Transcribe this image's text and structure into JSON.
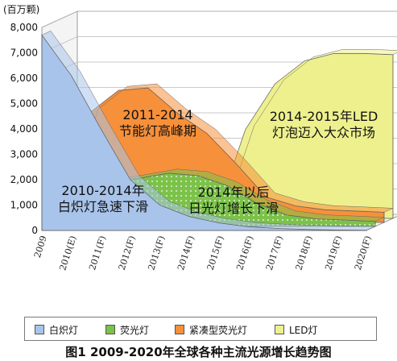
{
  "caption": "图1 2009-2020年全球各种主流光源增长趋势图",
  "colors": {
    "incandescent": "#a9c4ea",
    "fluorescent": "#7cc24a",
    "cfl": "#f7903a",
    "led": "#eef08e"
  },
  "chart_data": {
    "type": "area",
    "unit_label": "(百万颗)",
    "categories": [
      "2009",
      "2010(E)",
      "2011(F)",
      "2012(F)",
      "2013(F)",
      "2014(F)",
      "2015(F)",
      "2016(F)",
      "2017(F)",
      "2018(F)",
      "2019(F)",
      "2020(F)"
    ],
    "y_ticks": [
      "0",
      "1,000",
      "2,000",
      "3,000",
      "4,000",
      "5,000",
      "6,000",
      "7,000",
      "8,000"
    ],
    "ylim": [
      0,
      8000
    ],
    "series": [
      {
        "key": "led",
        "name": "LED灯",
        "values": [
          0,
          0,
          0,
          0,
          0,
          100,
          3500,
          5300,
          6200,
          6500,
          6500,
          6450
        ]
      },
      {
        "key": "cfl",
        "name": "紧凑型荧光灯",
        "values": [
          0,
          4300,
          5200,
          5300,
          4300,
          3500,
          2300,
          1000,
          650,
          500,
          450,
          400
        ]
      },
      {
        "key": "fluorescent",
        "name": "荧光灯",
        "values": [
          0,
          1300,
          1700,
          1900,
          2100,
          2000,
          1600,
          900,
          450,
          300,
          250,
          200
        ]
      },
      {
        "key": "incandescent",
        "name": "白炽灯",
        "values": [
          7700,
          6100,
          4000,
          2000,
          1000,
          550,
          300,
          150,
          80,
          40,
          20,
          10
        ]
      }
    ],
    "legend_order": [
      "incandescent",
      "fluorescent",
      "cfl",
      "led"
    ],
    "annotations": [
      {
        "lines": [
          "2011-2014",
          "节能灯高峰期"
        ]
      },
      {
        "lines": [
          "2014-2015年LED",
          "灯泡迈入大众市场"
        ]
      },
      {
        "lines": [
          "2010-2014年",
          "白炽灯急速下滑"
        ]
      },
      {
        "lines": [
          "2014年以后",
          "日光灯增长下滑"
        ]
      }
    ]
  }
}
